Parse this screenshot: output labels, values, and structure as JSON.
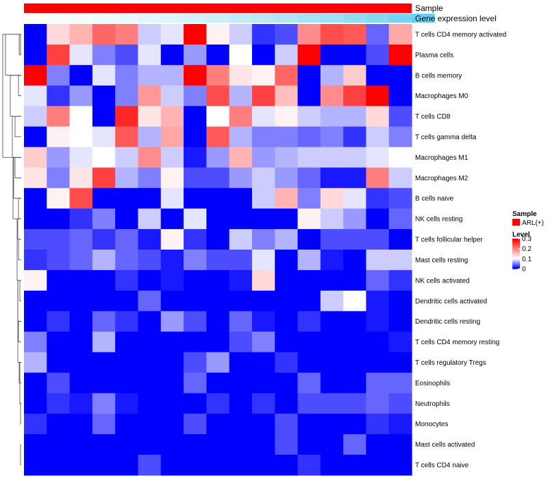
{
  "chart_data": {
    "type": "heatmap",
    "title": "",
    "annotation_tracks": [
      {
        "name": "Sample",
        "color": "#FF0000"
      },
      {
        "name": "Gene expression level"
      }
    ],
    "gene_expression_level": [
      0.0,
      0.03,
      0.06,
      0.09,
      0.12,
      0.16,
      0.2,
      0.25,
      0.3,
      0.35,
      0.4,
      0.46,
      0.52,
      0.58,
      0.65,
      0.72,
      0.8,
      0.88
    ],
    "rows": [
      "T cells CD4 memory activated",
      "Plasma cells",
      "B cells memory",
      "Macrophages M0",
      "T cells CD8",
      "T cells gamma delta",
      "Macrophages M1",
      "Macrophages M2",
      "B cells naive",
      "NK cells resting",
      "T cells follicular helper",
      "Mast cells resting",
      "NK cells activated",
      "Dendritic cells activated",
      "Dendritic cells resting",
      "T cells CD4 memory resting",
      "T cells regulatory  Tregs",
      "Eosinophils",
      "Neutrophils",
      "Monocytes",
      "Mast cells activated",
      "T cells CD4 naive"
    ],
    "values": [
      [
        0.0,
        0.13,
        0.16,
        0.22,
        0.2,
        0.08,
        0.09,
        0.3,
        0.11,
        0.08,
        0.02,
        0.03,
        0.19,
        0.24,
        0.23,
        0.04,
        0.17
      ],
      [
        0.0,
        0.25,
        0.09,
        0.05,
        0.03,
        0.09,
        0.0,
        0.06,
        0.0,
        0.1,
        0.0,
        0.08,
        0.3,
        0.0,
        0.0,
        0.03,
        0.3
      ],
      [
        0.3,
        0.05,
        0.0,
        0.09,
        0.05,
        0.07,
        0.07,
        0.3,
        0.2,
        0.12,
        0.11,
        0.22,
        0.0,
        0.07,
        0.14,
        0.0,
        0.0
      ],
      [
        0.09,
        0.02,
        0.06,
        0.0,
        0.05,
        0.18,
        0.08,
        0.05,
        0.24,
        0.07,
        0.25,
        0.15,
        0.0,
        0.19,
        0.25,
        0.3,
        0.0
      ],
      [
        0.08,
        0.2,
        0.1,
        0.0,
        0.27,
        0.12,
        0.16,
        0.0,
        0.1,
        0.2,
        0.09,
        0.11,
        0.08,
        0.07,
        0.07,
        0.13,
        0.03
      ],
      [
        0.0,
        0.11,
        0.1,
        0.09,
        0.23,
        0.07,
        0.17,
        0.0,
        0.23,
        0.07,
        0.05,
        0.05,
        0.04,
        0.05,
        0.02,
        0.08,
        0.05
      ],
      [
        0.14,
        0.06,
        0.09,
        0.1,
        0.08,
        0.19,
        0.08,
        0.01,
        0.06,
        0.16,
        0.06,
        0.07,
        0.08,
        0.08,
        0.08,
        0.09,
        0.1
      ],
      [
        0.12,
        0.05,
        0.12,
        0.25,
        0.07,
        0.05,
        0.11,
        0.03,
        0.03,
        0.06,
        0.08,
        0.06,
        0.04,
        0.01,
        0.01,
        0.2,
        0.08
      ],
      [
        0.0,
        0.11,
        0.24,
        0.0,
        0.0,
        0.0,
        0.09,
        0.0,
        0.0,
        0.0,
        0.08,
        0.16,
        0.05,
        0.13,
        0.09,
        0.02,
        0.03
      ],
      [
        0.0,
        0.0,
        0.02,
        0.05,
        0.0,
        0.08,
        0.0,
        0.09,
        0.0,
        0.0,
        0.0,
        0.0,
        0.11,
        0.08,
        0.06,
        0.0,
        0.04
      ],
      [
        0.03,
        0.03,
        0.04,
        0.02,
        0.04,
        0.01,
        0.11,
        0.02,
        0.0,
        0.08,
        0.05,
        0.07,
        0.0,
        0.03,
        0.03,
        0.03,
        0.0
      ],
      [
        0.02,
        0.03,
        0.04,
        0.07,
        0.04,
        0.03,
        0.01,
        0.05,
        0.03,
        0.03,
        0.09,
        0.0,
        0.07,
        0.01,
        0.0,
        0.08,
        0.08
      ],
      [
        0.11,
        0.0,
        0.0,
        0.0,
        0.02,
        0.0,
        0.01,
        0.0,
        0.0,
        0.01,
        0.13,
        0.0,
        0.0,
        0.0,
        0.0,
        0.04,
        0.02
      ],
      [
        0.0,
        0.0,
        0.0,
        0.0,
        0.0,
        0.04,
        0.0,
        0.0,
        0.0,
        0.0,
        0.0,
        0.0,
        0.0,
        0.08,
        0.1,
        0.01,
        0.0
      ],
      [
        0.0,
        0.02,
        0.0,
        0.04,
        0.02,
        0.0,
        0.06,
        0.03,
        0.0,
        0.04,
        0.01,
        0.0,
        0.02,
        0.0,
        0.0,
        0.01,
        0.0
      ],
      [
        0.05,
        0.0,
        0.0,
        0.07,
        0.0,
        0.0,
        0.0,
        0.0,
        0.0,
        0.03,
        0.05,
        0.0,
        0.0,
        0.0,
        0.0,
        0.0,
        0.01
      ],
      [
        0.07,
        0.0,
        0.0,
        0.0,
        0.0,
        0.0,
        0.0,
        0.03,
        0.06,
        0.0,
        0.0,
        0.02,
        0.0,
        0.0,
        0.0,
        0.0,
        0.0
      ],
      [
        0.0,
        0.03,
        0.0,
        0.0,
        0.0,
        0.0,
        0.0,
        0.04,
        0.0,
        0.0,
        0.0,
        0.0,
        0.04,
        0.0,
        0.0,
        0.04,
        0.04
      ],
      [
        0.0,
        0.02,
        0.01,
        0.05,
        0.01,
        0.0,
        0.0,
        0.0,
        0.02,
        0.0,
        0.02,
        0.0,
        0.03,
        0.03,
        0.03,
        0.04,
        0.03
      ],
      [
        0.02,
        0.0,
        0.0,
        0.04,
        0.0,
        0.0,
        0.0,
        0.03,
        0.0,
        0.0,
        0.0,
        0.03,
        0.0,
        0.0,
        0.0,
        0.02,
        0.01
      ],
      [
        0.0,
        0.0,
        0.0,
        0.0,
        0.0,
        0.0,
        0.0,
        0.0,
        0.0,
        0.0,
        0.0,
        0.03,
        0.0,
        0.0,
        0.04,
        0.0,
        0.0
      ],
      [
        0.0,
        0.0,
        0.0,
        0.0,
        0.0,
        0.03,
        0.0,
        0.0,
        0.0,
        0.0,
        0.0,
        0.0,
        0.02,
        0.0,
        0.0,
        0.0,
        0.0
      ]
    ],
    "color_scale": {
      "min": 0,
      "mid": 0.1,
      "max": 0.3,
      "low_color": "#0000FF",
      "mid_color": "#FFFFFF",
      "high_color": "#FF0000"
    },
    "legend": {
      "sample_title": "Sample",
      "sample_entries": [
        {
          "label": "ARL(+)",
          "color": "#FF0000"
        }
      ],
      "level_title": "Level",
      "level_ticks": [
        {
          "value": 0.3,
          "label": "0.3"
        },
        {
          "value": 0.2,
          "label": "0.2"
        },
        {
          "value": 0.1,
          "label": "0.1"
        },
        {
          "value": 0.0,
          "label": "0"
        }
      ],
      "placement": "right"
    },
    "dendrogram": "rows"
  }
}
